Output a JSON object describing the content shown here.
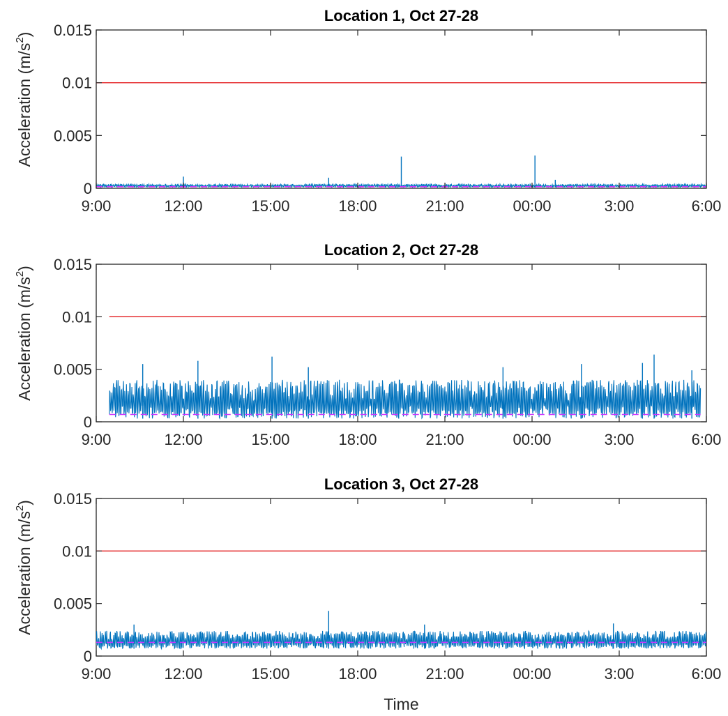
{
  "chart_data": [
    {
      "type": "line",
      "title": "Location 1, Oct 27-28",
      "xlabel": "",
      "ylabel": "Acceleration (m/s",
      "ylabel_sup": "2",
      "ylabel_close": ")",
      "x_ticks": [
        "9:00",
        "12:00",
        "15:00",
        "18:00",
        "21:00",
        "00:00",
        "3:00",
        "6:00"
      ],
      "x_range_hours": [
        0,
        21
      ],
      "y_ticks": [
        "0",
        "0.005",
        "0.01",
        "0.015"
      ],
      "ylim": [
        0,
        0.015
      ],
      "threshold": 0.01,
      "mean_line": 0.00015,
      "signal": {
        "start_hour": 0,
        "end_hour": 21,
        "low": 0.0001,
        "high": 0.0004,
        "spikes": [
          {
            "hour": 3.0,
            "value": 0.0011
          },
          {
            "hour": 8.0,
            "value": 0.001
          },
          {
            "hour": 10.5,
            "value": 0.003
          },
          {
            "hour": 15.1,
            "value": 0.0031
          },
          {
            "hour": 15.8,
            "value": 0.0008
          }
        ]
      },
      "colors": {
        "signal": "#0072bd",
        "threshold": "#e31a1c",
        "mean": "#cc33ff"
      }
    },
    {
      "type": "line",
      "title": "Location 2, Oct 27-28",
      "xlabel": "",
      "ylabel": "Acceleration (m/s",
      "ylabel_sup": "2",
      "ylabel_close": ")",
      "x_ticks": [
        "9:00",
        "12:00",
        "15:00",
        "18:00",
        "21:00",
        "00:00",
        "3:00",
        "6:00"
      ],
      "x_range_hours": [
        0,
        21
      ],
      "y_ticks": [
        "0",
        "0.005",
        "0.01",
        "0.015"
      ],
      "ylim": [
        0,
        0.015
      ],
      "threshold": 0.01,
      "threshold_start_hour": 0.45,
      "mean_line": 0.0007,
      "signal": {
        "start_hour": 0.45,
        "end_hour": 20.8,
        "low": 0.0003,
        "high": 0.004,
        "spikes": [
          {
            "hour": 1.6,
            "value": 0.0055
          },
          {
            "hour": 3.5,
            "value": 0.0058
          },
          {
            "hour": 6.05,
            "value": 0.0062
          },
          {
            "hour": 7.3,
            "value": 0.0052
          },
          {
            "hour": 14.0,
            "value": 0.0052
          },
          {
            "hour": 16.7,
            "value": 0.0055
          },
          {
            "hour": 18.8,
            "value": 0.0056
          },
          {
            "hour": 19.2,
            "value": 0.0064
          },
          {
            "hour": 20.5,
            "value": 0.0049
          }
        ]
      },
      "colors": {
        "signal": "#0072bd",
        "threshold": "#e31a1c",
        "mean": "#cc33ff"
      }
    },
    {
      "type": "line",
      "title": "Location 3, Oct 27-28",
      "xlabel": "Time",
      "ylabel": "Acceleration (m/s",
      "ylabel_sup": "2",
      "ylabel_close": ")",
      "x_ticks": [
        "9:00",
        "12:00",
        "15:00",
        "18:00",
        "21:00",
        "00:00",
        "3:00",
        "6:00"
      ],
      "x_range_hours": [
        0,
        21
      ],
      "y_ticks": [
        "0",
        "0.005",
        "0.01",
        "0.015"
      ],
      "ylim": [
        0,
        0.015
      ],
      "threshold": 0.01,
      "mean_line": 0.0013,
      "signal": {
        "start_hour": 0,
        "end_hour": 21,
        "low": 0.0007,
        "high": 0.0024,
        "spikes": [
          {
            "hour": 1.3,
            "value": 0.003
          },
          {
            "hour": 8.0,
            "value": 0.0043
          },
          {
            "hour": 11.3,
            "value": 0.003
          },
          {
            "hour": 17.8,
            "value": 0.0031
          }
        ]
      },
      "colors": {
        "signal": "#0072bd",
        "threshold": "#e31a1c",
        "mean": "#cc33ff"
      }
    }
  ]
}
